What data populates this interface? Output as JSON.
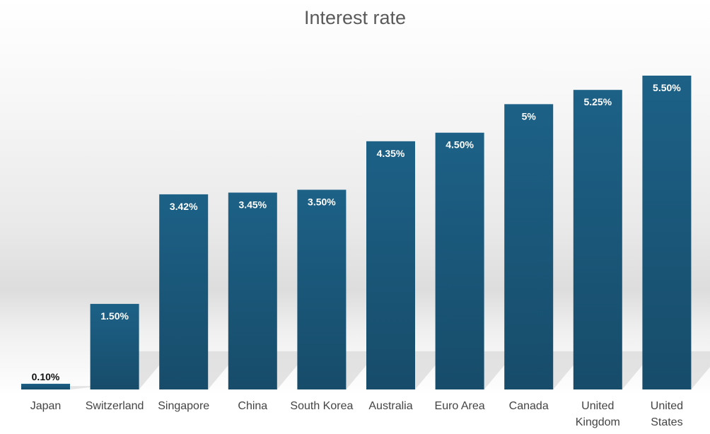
{
  "chart_data": {
    "type": "bar",
    "title": "Interest rate",
    "xlabel": "",
    "ylabel": "",
    "ylim": [
      0,
      5.5
    ],
    "grid": false,
    "legend": "none",
    "bar_color": "#1b5c80",
    "categories": [
      [
        "Japan"
      ],
      [
        "Switzerland"
      ],
      [
        "Singapore"
      ],
      [
        "China"
      ],
      [
        "South Korea"
      ],
      [
        "Australia"
      ],
      [
        "Euro Area"
      ],
      [
        "Canada"
      ],
      [
        "United",
        "Kingdom"
      ],
      [
        "United",
        "States"
      ]
    ],
    "values": [
      0.1,
      1.5,
      3.42,
      3.45,
      3.5,
      4.35,
      4.5,
      5.0,
      5.25,
      5.5
    ],
    "data_labels": [
      "0.10%",
      "1.50%",
      "3.42%",
      "3.45%",
      "3.50%",
      "4.35%",
      "4.50%",
      "5%",
      "5.25%",
      "5.50%"
    ]
  }
}
